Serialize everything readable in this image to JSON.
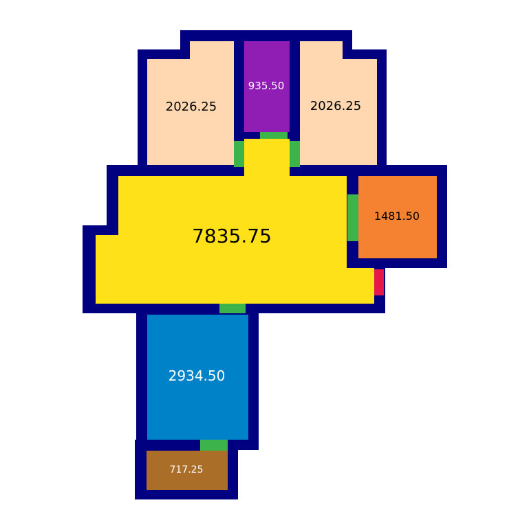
{
  "colors": {
    "wall": "#000080",
    "door": "#3cb44b",
    "entrance": "#e6194b",
    "living": "#ffe119",
    "bedroom": "#ffd8b1",
    "closet": "#911eb4",
    "kitchen": "#f58231",
    "bathroom": "#0082c8",
    "storage": "#aa6e28",
    "background": "#ffffff"
  },
  "rooms": {
    "living": {
      "area": "7835.75"
    },
    "bedroom_left": {
      "area": "2026.25"
    },
    "closet": {
      "area": "935.50"
    },
    "bedroom_right": {
      "area": "2026.25"
    },
    "kitchen": {
      "area": "1481.50"
    },
    "bathroom": {
      "area": "2934.50"
    },
    "storage": {
      "area": "717.25"
    }
  }
}
